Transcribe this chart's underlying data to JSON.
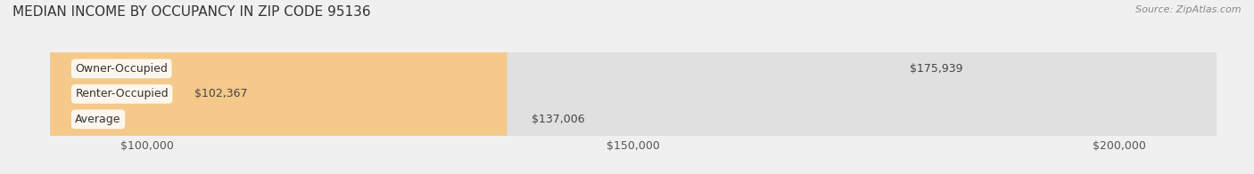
{
  "title": "MEDIAN INCOME BY OCCUPANCY IN ZIP CODE 95136",
  "source": "Source: ZipAtlas.com",
  "categories": [
    "Owner-Occupied",
    "Renter-Occupied",
    "Average"
  ],
  "values": [
    175939,
    102367,
    137006
  ],
  "bar_colors": [
    "#2bbcbb",
    "#b8a0c8",
    "#f5c98a"
  ],
  "value_labels": [
    "$175,939",
    "$102,367",
    "$137,006"
  ],
  "xlim": [
    90000,
    210000
  ],
  "xticks": [
    100000,
    150000,
    200000
  ],
  "xtick_labels": [
    "$100,000",
    "$150,000",
    "$200,000"
  ],
  "background_color": "#f0f0f0",
  "bar_background_color": "#e0e0e0",
  "bar_height": 0.6,
  "title_fontsize": 11,
  "tick_fontsize": 9,
  "label_fontsize": 9,
  "value_fontsize": 9
}
